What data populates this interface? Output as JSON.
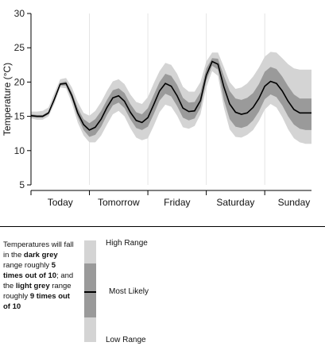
{
  "chart_data": {
    "type": "area",
    "title": "",
    "ylabel": "Temperature (°C)",
    "xlabel": "",
    "ylim": [
      5,
      30
    ],
    "yticks": [
      5,
      10,
      15,
      20,
      25,
      30
    ],
    "days": [
      "Today",
      "Tomorrow",
      "Friday",
      "Saturday",
      "Sunday"
    ],
    "grid": "vertical day separators",
    "colors": {
      "light_band": "#d4d4d4",
      "dark_band": "#9a9a9a",
      "line": "#000000"
    },
    "series": [
      {
        "role": "most_likely",
        "x": [
          0,
          0.1,
          0.2,
          0.3,
          0.4,
          0.5,
          0.6,
          0.7,
          0.8,
          0.9,
          1.0,
          1.1,
          1.2,
          1.3,
          1.4,
          1.5,
          1.6,
          1.7,
          1.8,
          1.9,
          2.0,
          2.1,
          2.2,
          2.3,
          2.4,
          2.5,
          2.6,
          2.7,
          2.8,
          2.9,
          3.0,
          3.1,
          3.2,
          3.3,
          3.4,
          3.5,
          3.6,
          3.7,
          3.8,
          3.9,
          4.0,
          4.1,
          4.2,
          4.3,
          4.4,
          4.5,
          4.6,
          4.7,
          4.8
        ],
        "values": [
          15.1,
          15.0,
          15.0,
          15.5,
          17.5,
          19.7,
          19.8,
          18.0,
          15.5,
          13.8,
          13.0,
          13.4,
          14.6,
          16.3,
          17.7,
          18.0,
          17.2,
          15.6,
          14.4,
          14.1,
          14.8,
          16.7,
          18.7,
          19.8,
          19.4,
          18.0,
          16.2,
          15.7,
          15.8,
          17.3,
          21.0,
          23.0,
          22.6,
          19.3,
          16.8,
          15.6,
          15.3,
          15.5,
          16.3,
          17.6,
          19.4,
          20.1,
          19.8,
          18.7,
          17.2,
          16.0,
          15.5,
          15.5,
          15.5
        ]
      },
      {
        "role": "dark_lower",
        "values": [
          14.9,
          14.8,
          14.8,
          15.3,
          17.2,
          19.5,
          19.5,
          17.5,
          14.9,
          13.0,
          12.0,
          12.3,
          13.5,
          15.2,
          16.6,
          17.0,
          16.2,
          14.6,
          13.3,
          13.0,
          13.5,
          15.3,
          17.3,
          18.3,
          17.9,
          16.5,
          14.8,
          14.4,
          14.7,
          16.3,
          20.2,
          22.4,
          21.8,
          17.4,
          14.6,
          13.5,
          13.3,
          13.6,
          14.4,
          15.7,
          17.5,
          18.2,
          17.8,
          16.6,
          15.0,
          13.8,
          13.2,
          13.0,
          13.0
        ]
      },
      {
        "role": "dark_upper",
        "values": [
          15.3,
          15.2,
          15.2,
          15.7,
          17.8,
          19.9,
          20.1,
          18.5,
          16.2,
          14.6,
          14.0,
          14.6,
          15.8,
          17.4,
          18.8,
          19.1,
          18.4,
          16.8,
          15.6,
          15.3,
          16.2,
          18.1,
          20.0,
          21.2,
          20.9,
          19.6,
          17.7,
          17.0,
          17.1,
          18.5,
          22.0,
          23.5,
          23.4,
          20.9,
          18.7,
          17.6,
          17.4,
          17.7,
          18.4,
          19.7,
          21.5,
          22.2,
          21.9,
          20.8,
          19.4,
          18.2,
          17.6,
          17.6,
          17.6
        ]
      },
      {
        "role": "light_lower",
        "values": [
          14.7,
          14.5,
          14.5,
          15.0,
          16.8,
          19.2,
          19.1,
          16.9,
          14.1,
          12.2,
          11.2,
          11.2,
          12.2,
          13.8,
          15.3,
          15.8,
          15.0,
          13.3,
          11.9,
          11.5,
          11.8,
          13.6,
          15.6,
          16.7,
          16.4,
          15.1,
          13.4,
          13.2,
          13.6,
          15.3,
          19.2,
          21.6,
          20.9,
          16.3,
          13.1,
          12.0,
          11.9,
          12.3,
          13.0,
          14.3,
          16.0,
          16.8,
          16.3,
          14.9,
          13.1,
          11.8,
          11.2,
          11.0,
          11.0
        ]
      },
      {
        "role": "light_upper",
        "values": [
          15.7,
          15.7,
          15.8,
          16.3,
          18.4,
          20.4,
          20.6,
          19.2,
          17.1,
          15.5,
          15.1,
          15.8,
          17.1,
          18.7,
          20.1,
          20.4,
          19.7,
          18.2,
          17.1,
          16.8,
          17.8,
          19.8,
          21.6,
          22.8,
          22.5,
          21.2,
          19.3,
          18.6,
          18.6,
          20.0,
          23.0,
          24.3,
          24.3,
          22.2,
          20.0,
          19.0,
          19.2,
          19.8,
          20.8,
          22.1,
          23.7,
          24.4,
          24.3,
          23.5,
          22.6,
          22.0,
          21.8,
          21.8,
          21.8
        ]
      }
    ]
  },
  "legend": {
    "text_plain_1": "Temperatures will fall in the ",
    "text_bold_1": "dark grey",
    "text_plain_2": " range roughly ",
    "text_bold_2": "5 times out of 10",
    "text_plain_3": "; and the ",
    "text_bold_3": "light grey",
    "text_plain_4": " range roughly ",
    "text_bold_4": "9 times out of 10",
    "high_label": "High Range",
    "mid_label": "Most Likely",
    "low_label": "Low Range"
  }
}
